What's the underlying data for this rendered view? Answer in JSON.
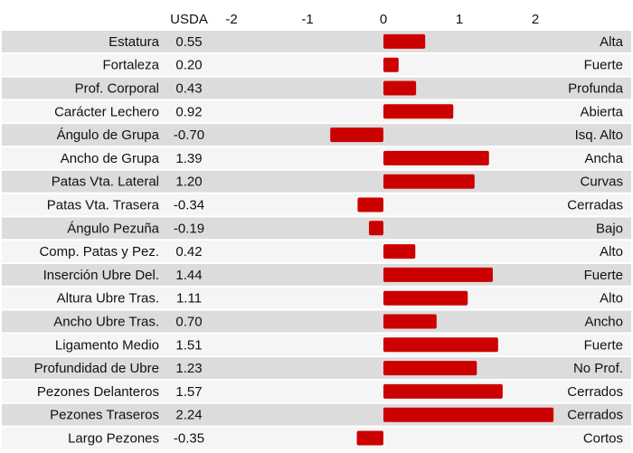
{
  "chart_data": {
    "type": "bar",
    "orientation": "horizontal",
    "value_header": "USDA",
    "xlim": [
      -2,
      2
    ],
    "xticks": [
      "-2",
      "-1",
      "0",
      "1",
      "2"
    ],
    "bar_color": "#cc0000",
    "row_colors": [
      "#dcdcdc",
      "#f5f5f5"
    ],
    "rows": [
      {
        "trait": "Estatura",
        "value": 0.55,
        "value_label": "0.55",
        "descriptor": "Alta"
      },
      {
        "trait": "Fortaleza",
        "value": 0.2,
        "value_label": "0.20",
        "descriptor": "Fuerte"
      },
      {
        "trait": "Prof. Corporal",
        "value": 0.43,
        "value_label": "0.43",
        "descriptor": "Profunda"
      },
      {
        "trait": "Carácter Lechero",
        "value": 0.92,
        "value_label": "0.92",
        "descriptor": "Abierta"
      },
      {
        "trait": "Ángulo de Grupa",
        "value": -0.7,
        "value_label": "-0.70",
        "descriptor": "Isq. Alto"
      },
      {
        "trait": "Ancho de Grupa",
        "value": 1.39,
        "value_label": "1.39",
        "descriptor": "Ancha"
      },
      {
        "trait": "Patas Vta. Lateral",
        "value": 1.2,
        "value_label": "1.20",
        "descriptor": "Curvas"
      },
      {
        "trait": "Patas Vta. Trasera",
        "value": -0.34,
        "value_label": "-0.34",
        "descriptor": "Cerradas"
      },
      {
        "trait": "Ángulo Pezuña",
        "value": -0.19,
        "value_label": "-0.19",
        "descriptor": "Bajo"
      },
      {
        "trait": "Comp. Patas y Pez.",
        "value": 0.42,
        "value_label": "0.42",
        "descriptor": "Alto"
      },
      {
        "trait": "Inserción Ubre Del.",
        "value": 1.44,
        "value_label": "1.44",
        "descriptor": "Fuerte"
      },
      {
        "trait": "Altura Ubre Tras.",
        "value": 1.11,
        "value_label": "1.11",
        "descriptor": "Alto"
      },
      {
        "trait": "Ancho Ubre Tras.",
        "value": 0.7,
        "value_label": "0.70",
        "descriptor": "Ancho"
      },
      {
        "trait": "Ligamento Medio",
        "value": 1.51,
        "value_label": "1.51",
        "descriptor": "Fuerte"
      },
      {
        "trait": "Profundidad de Ubre",
        "value": 1.23,
        "value_label": "1.23",
        "descriptor": "No Prof."
      },
      {
        "trait": "Pezones Delanteros",
        "value": 1.57,
        "value_label": "1.57",
        "descriptor": "Cerrados"
      },
      {
        "trait": "Pezones Traseros",
        "value": 2.24,
        "value_label": "2.24",
        "descriptor": "Cerrados"
      },
      {
        "trait": "Largo Pezones",
        "value": -0.35,
        "value_label": "-0.35",
        "descriptor": "Cortos"
      }
    ]
  }
}
